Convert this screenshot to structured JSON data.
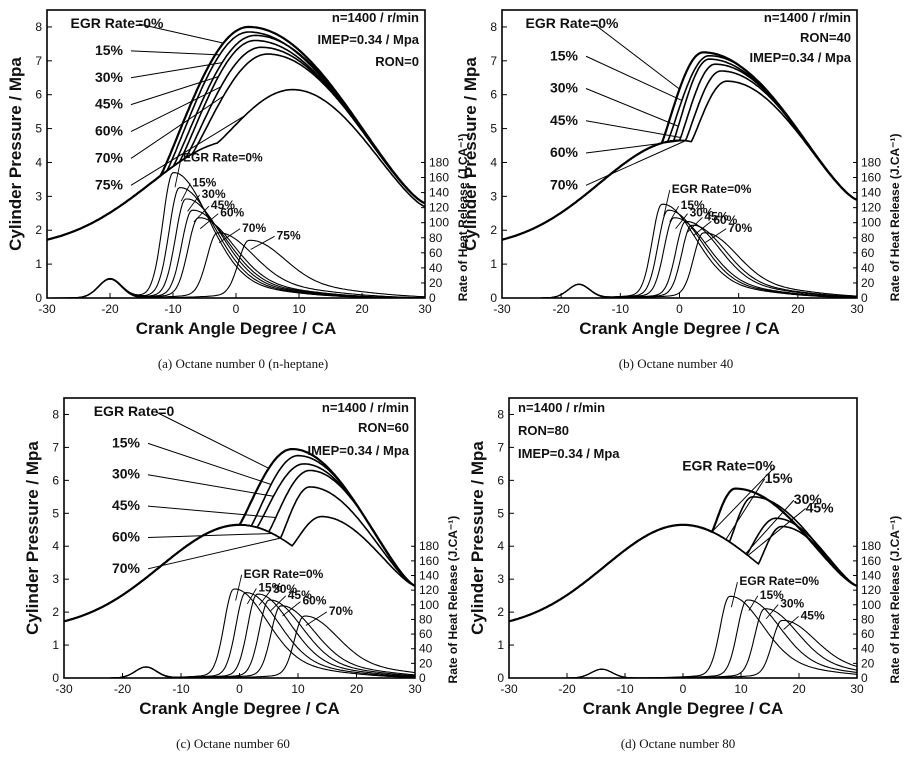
{
  "chart_data": [
    {
      "type": "line",
      "caption": "(a) Octane number 0 (n-heptane)",
      "xlabel": "Crank Angle Degree  /  CA",
      "ylabel": "Cylinder Pressure  /  Mpa",
      "y2label": "Rate of Heat Release (J.CA⁻¹)",
      "xlim": [
        -30,
        30
      ],
      "xticks": [
        -30,
        -20,
        -10,
        0,
        10,
        20,
        30
      ],
      "ylim": [
        0,
        8.5
      ],
      "yticks": [
        0,
        1,
        2,
        3,
        4,
        5,
        6,
        7,
        8
      ],
      "y2ticks": [
        0,
        20,
        40,
        60,
        80,
        100,
        120,
        140,
        160,
        180
      ],
      "y2_top_pressure": 4.0,
      "conditions": [
        "n=1400 / r/min",
        "IMEP=0.34 / Mpa",
        "RON=0"
      ],
      "pressure_series": [
        {
          "label": "EGR Rate=0%",
          "peak_x": 2,
          "peak_y": 8.0,
          "start_x": -12,
          "start_y": 3.2,
          "end_y": 2.8
        },
        {
          "label": "15%",
          "peak_x": 2,
          "peak_y": 7.85,
          "start_x": -11,
          "start_y": 3.3,
          "end_y": 2.8
        },
        {
          "label": "30%",
          "peak_x": 3,
          "peak_y": 7.75,
          "start_x": -10,
          "start_y": 3.4,
          "end_y": 2.8
        },
        {
          "label": "45%",
          "peak_x": 3,
          "peak_y": 7.6,
          "start_x": -9,
          "start_y": 3.5,
          "end_y": 2.8
        },
        {
          "label": "60%",
          "peak_x": 4,
          "peak_y": 7.4,
          "start_x": -8,
          "start_y": 3.6,
          "end_y": 2.8
        },
        {
          "label": "70%",
          "peak_x": 5,
          "peak_y": 7.2,
          "start_x": -7,
          "start_y": 3.7,
          "end_y": 2.8
        },
        {
          "label": "75%",
          "peak_x": 9,
          "peak_y": 6.15,
          "start_x": -3,
          "start_y": 4.3,
          "end_y": 2.7
        }
      ],
      "heat_release_series": [
        {
          "label": "EGR Rate=0%",
          "peak_x": -10,
          "peak_y": 160
        },
        {
          "label": "15%",
          "peak_x": -9,
          "peak_y": 140
        },
        {
          "label": "30%",
          "peak_x": -8,
          "peak_y": 125
        },
        {
          "label": "45%",
          "peak_x": -7,
          "peak_y": 110
        },
        {
          "label": "60%",
          "peak_x": -6,
          "peak_y": 100
        },
        {
          "label": "70%",
          "peak_x": -3,
          "peak_y": 80
        },
        {
          "label": "75%",
          "peak_x": 2,
          "peak_y": 70
        }
      ],
      "low_temp_peak": {
        "x": -20,
        "y": 25
      }
    },
    {
      "type": "line",
      "caption": "(b) Octane number 40",
      "xlabel": "Crank Angle Degree  /  CA",
      "ylabel": "Cylinder Pressure  /  Mpa",
      "y2label": "Rate of Heat Release (J.CA⁻¹)",
      "xlim": [
        -30,
        30
      ],
      "xticks": [
        -30,
        -20,
        -10,
        0,
        10,
        20,
        30
      ],
      "ylim": [
        0,
        8.5
      ],
      "yticks": [
        0,
        1,
        2,
        3,
        4,
        5,
        6,
        7,
        8
      ],
      "y2ticks": [
        0,
        20,
        40,
        60,
        80,
        100,
        120,
        140,
        160,
        180
      ],
      "y2_top_pressure": 4.0,
      "conditions": [
        "n=1400 / r/min",
        "RON=40",
        "IMEP=0.34 / Mpa"
      ],
      "pressure_series": [
        {
          "label": "EGR Rate=0%",
          "peak_x": 4,
          "peak_y": 7.25,
          "start_x": -3,
          "start_y": 4.4,
          "end_y": 2.9
        },
        {
          "label": "15%",
          "peak_x": 5,
          "peak_y": 7.15,
          "start_x": -2,
          "start_y": 4.5,
          "end_y": 2.9
        },
        {
          "label": "30%",
          "peak_x": 5,
          "peak_y": 7.05,
          "start_x": -1,
          "start_y": 4.6,
          "end_y": 2.9
        },
        {
          "label": "45%",
          "peak_x": 6,
          "peak_y": 6.9,
          "start_x": 0,
          "start_y": 4.7,
          "end_y": 2.9
        },
        {
          "label": "60%",
          "peak_x": 7,
          "peak_y": 6.7,
          "start_x": 1,
          "start_y": 4.8,
          "end_y": 2.9
        },
        {
          "label": "70%",
          "peak_x": 8,
          "peak_y": 6.4,
          "start_x": 2,
          "start_y": 4.9,
          "end_y": 2.9
        }
      ],
      "heat_release_series": [
        {
          "label": "EGR Rate=0%",
          "peak_x": -3,
          "peak_y": 118
        },
        {
          "label": "15%",
          "peak_x": -2,
          "peak_y": 110
        },
        {
          "label": "30%",
          "peak_x": -1,
          "peak_y": 100
        },
        {
          "label": "45%",
          "peak_x": 1,
          "peak_y": 95
        },
        {
          "label": "60%",
          "peak_x": 2,
          "peak_y": 90
        },
        {
          "label": "70%",
          "peak_x": 4,
          "peak_y": 80
        }
      ],
      "low_temp_peak": {
        "x": -17,
        "y": 18
      }
    },
    {
      "type": "line",
      "caption": "(c) Octane number 60",
      "xlabel": "Crank Angle Degree  /  CA",
      "ylabel": "Cylinder Pressure  /  Mpa",
      "y2label": "Rate of Heat Release (J.CA⁻¹)",
      "xlim": [
        -30,
        30
      ],
      "xticks": [
        -30,
        -20,
        -10,
        0,
        10,
        20,
        30
      ],
      "ylim": [
        0,
        8.5
      ],
      "yticks": [
        0,
        1,
        2,
        3,
        4,
        5,
        6,
        7,
        8
      ],
      "y2ticks": [
        0,
        20,
        40,
        60,
        80,
        100,
        120,
        140,
        160,
        180
      ],
      "y2_top_pressure": 4.0,
      "conditions": [
        "n=1400 / r/min",
        "RON=60",
        "IMEP=0.34 / Mpa"
      ],
      "pressure_series": [
        {
          "label": "EGR Rate=0",
          "peak_x": 9,
          "peak_y": 6.95,
          "start_x": 0,
          "start_y": 4.7,
          "end_y": 2.8
        },
        {
          "label": "15%",
          "peak_x": 10,
          "peak_y": 6.75,
          "start_x": 2,
          "start_y": 4.7,
          "end_y": 2.8
        },
        {
          "label": "30%",
          "peak_x": 11,
          "peak_y": 6.5,
          "start_x": 3,
          "start_y": 4.7,
          "end_y": 2.8
        },
        {
          "label": "45%",
          "peak_x": 12,
          "peak_y": 6.3,
          "start_x": 5,
          "start_y": 4.7,
          "end_y": 2.8
        },
        {
          "label": "60%",
          "peak_x": 12,
          "peak_y": 5.8,
          "start_x": 7,
          "start_y": 4.7,
          "end_y": 2.8
        },
        {
          "label": "70%",
          "peak_x": 14,
          "peak_y": 4.9,
          "start_x": 9,
          "start_y": 4.7,
          "end_y": 2.8
        }
      ],
      "heat_release_series": [
        {
          "label": "EGR Rate=0%",
          "peak_x": -1,
          "peak_y": 115
        },
        {
          "label": "15%",
          "peak_x": 1,
          "peak_y": 110
        },
        {
          "label": "30%",
          "peak_x": 3,
          "peak_y": 108
        },
        {
          "label": "45%",
          "peak_x": 5,
          "peak_y": 100
        },
        {
          "label": "60%",
          "peak_x": 7,
          "peak_y": 92
        },
        {
          "label": "70%",
          "peak_x": 11,
          "peak_y": 78
        }
      ],
      "low_temp_peak": {
        "x": -16,
        "y": 15
      }
    },
    {
      "type": "line",
      "caption": "(d) Octane number 80",
      "xlabel": "Crank Angle Degree  /  CA",
      "ylabel": "Cylinder Pressure  /  Mpa",
      "y2label": "Rate of Heat Release (J.CA⁻¹)",
      "xlim": [
        -30,
        30
      ],
      "xticks": [
        -30,
        -20,
        -10,
        0,
        10,
        20,
        30
      ],
      "ylim": [
        0,
        8.5
      ],
      "yticks": [
        0,
        1,
        2,
        3,
        4,
        5,
        6,
        7,
        8
      ],
      "y2ticks": [
        0,
        20,
        40,
        60,
        80,
        100,
        120,
        140,
        160,
        180
      ],
      "y2_top_pressure": 4.0,
      "conditions": [
        "n=1400 / r/min",
        "RON=80",
        "IMEP=0.34 / Mpa"
      ],
      "pressure_series": [
        {
          "label": "EGR Rate=0%",
          "peak_x": 9,
          "peak_y": 5.75,
          "start_x": 5,
          "start_y": 4.6,
          "end_y": 2.8
        },
        {
          "label": "15%",
          "peak_x": 12,
          "peak_y": 5.5,
          "start_x": 8,
          "start_y": 4.5,
          "end_y": 2.8
        },
        {
          "label": "30%",
          "peak_x": 16,
          "peak_y": 4.85,
          "start_x": 11,
          "start_y": 4.3,
          "end_y": 2.8
        },
        {
          "label": "45%",
          "peak_x": 17,
          "peak_y": 4.6,
          "start_x": 13,
          "start_y": 4.2,
          "end_y": 2.8
        }
      ],
      "heat_release_series": [
        {
          "label": "EGR Rate=0%",
          "peak_x": 8,
          "peak_y": 105
        },
        {
          "label": "15%",
          "peak_x": 11,
          "peak_y": 100
        },
        {
          "label": "30%",
          "peak_x": 14,
          "peak_y": 88
        },
        {
          "label": "45%",
          "peak_x": 17,
          "peak_y": 72
        }
      ],
      "low_temp_peak": {
        "x": -14,
        "y": 12
      }
    }
  ]
}
